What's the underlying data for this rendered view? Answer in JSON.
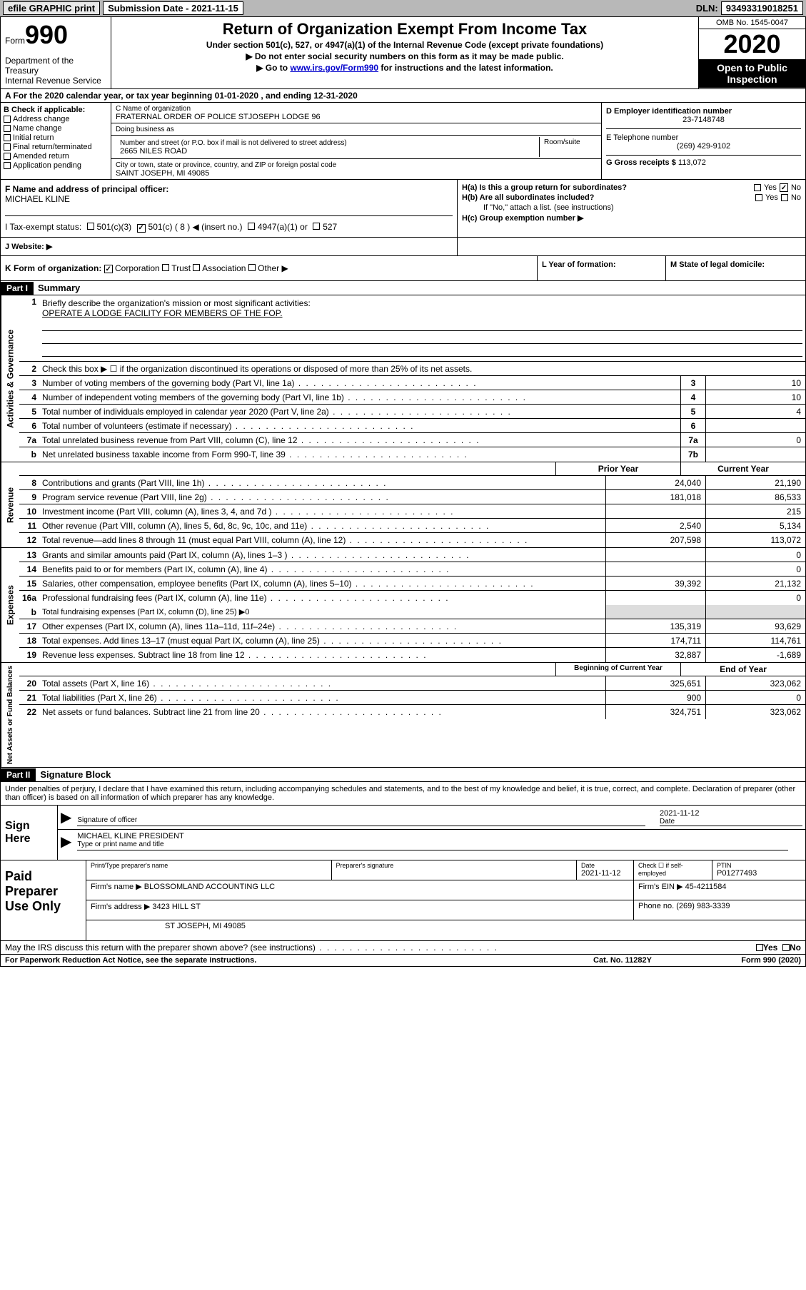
{
  "topbar": {
    "efile": "efile GRAPHIC print",
    "submission_label": "Submission Date - 2021-11-15",
    "dln_label": "DLN:",
    "dln": "93493319018251"
  },
  "header": {
    "form_word": "Form",
    "form_num": "990",
    "dept": "Department of the Treasury\nInternal Revenue Service",
    "title": "Return of Organization Exempt From Income Tax",
    "subtitle": "Under section 501(c), 527, or 4947(a)(1) of the Internal Revenue Code (except private foundations)",
    "instr1": "▶ Do not enter social security numbers on this form as it may be made public.",
    "instr2_pre": "▶ Go to ",
    "instr2_link": "www.irs.gov/Form990",
    "instr2_post": " for instructions and the latest information.",
    "omb": "OMB No. 1545-0047",
    "year": "2020",
    "inspection": "Open to Public Inspection"
  },
  "row_a": "A For the 2020 calendar year, or tax year beginning 01-01-2020    , and ending 12-31-2020",
  "col_b": {
    "header": "B Check if applicable:",
    "items": [
      "Address change",
      "Name change",
      "Initial return",
      "Final return/terminated",
      "Amended return",
      "Application pending"
    ]
  },
  "org": {
    "c_label": "C Name of organization",
    "name": "FRATERNAL ORDER OF POLICE STJOSEPH LODGE 96",
    "dba_label": "Doing business as",
    "addr_label": "Number and street (or P.O. box if mail is not delivered to street address)",
    "room_label": "Room/suite",
    "address": "2665 NILES ROAD",
    "city_label": "City or town, state or province, country, and ZIP or foreign postal code",
    "city": "SAINT JOSEPH, MI  49085"
  },
  "right_col": {
    "d_label": "D Employer identification number",
    "ein": "23-7148748",
    "e_label": "E Telephone number",
    "phone": "(269) 429-9102",
    "g_label": "G Gross receipts $",
    "gross": "113,072"
  },
  "officer": {
    "f_label": "F Name and address of principal officer:",
    "name": "MICHAEL KLINE"
  },
  "h_section": {
    "ha": "H(a)  Is this a group return for subordinates?",
    "hb": "H(b)  Are all subordinates included?",
    "hb_note": "If \"No,\" attach a list. (see instructions)",
    "hc": "H(c)  Group exemption number ▶",
    "yes": "Yes",
    "no": "No"
  },
  "tax_status": {
    "i_label": "I   Tax-exempt status:",
    "opt1": "501(c)(3)",
    "opt2": "501(c) ( 8 ) ◀ (insert no.)",
    "opt3": "4947(a)(1) or",
    "opt4": "527"
  },
  "website": {
    "j_label": "J   Website: ▶"
  },
  "k_row": {
    "k_label": "K Form of organization:",
    "opts": [
      "Corporation",
      "Trust",
      "Association",
      "Other ▶"
    ],
    "l_label": "L Year of formation:",
    "m_label": "M State of legal domicile:"
  },
  "part1": {
    "header": "Part I",
    "title": "Summary"
  },
  "summary": {
    "line1_label": "Briefly describe the organization's mission or most significant activities:",
    "line1_text": "OPERATE A LODGE FACILITY FOR MEMBERS OF THE FOP.",
    "line2": "Check this box ▶ ☐  if the organization discontinued its operations or disposed of more than 25% of its net assets.",
    "line3": "Number of voting members of the governing body (Part VI, line 1a)",
    "line4": "Number of independent voting members of the governing body (Part VI, line 1b)",
    "line5": "Total number of individuals employed in calendar year 2020 (Part V, line 2a)",
    "line6": "Total number of volunteers (estimate if necessary)",
    "line7a": "Total unrelated business revenue from Part VIII, column (C), line 12",
    "line7b": "Net unrelated business taxable income from Form 990-T, line 39",
    "v3": "10",
    "v4": "10",
    "v5": "4",
    "v6": "",
    "v7a": "0",
    "v7b": ""
  },
  "revenue": {
    "prior_head": "Prior Year",
    "current_head": "Current Year",
    "lines": [
      {
        "n": "8",
        "t": "Contributions and grants (Part VIII, line 1h)",
        "p": "24,040",
        "c": "21,190"
      },
      {
        "n": "9",
        "t": "Program service revenue (Part VIII, line 2g)",
        "p": "181,018",
        "c": "86,533"
      },
      {
        "n": "10",
        "t": "Investment income (Part VIII, column (A), lines 3, 4, and 7d )",
        "p": "",
        "c": "215"
      },
      {
        "n": "11",
        "t": "Other revenue (Part VIII, column (A), lines 5, 6d, 8c, 9c, 10c, and 11e)",
        "p": "2,540",
        "c": "5,134"
      },
      {
        "n": "12",
        "t": "Total revenue—add lines 8 through 11 (must equal Part VIII, column (A), line 12)",
        "p": "207,598",
        "c": "113,072"
      }
    ]
  },
  "expenses": {
    "lines": [
      {
        "n": "13",
        "t": "Grants and similar amounts paid (Part IX, column (A), lines 1–3 )",
        "p": "",
        "c": "0"
      },
      {
        "n": "14",
        "t": "Benefits paid to or for members (Part IX, column (A), line 4)",
        "p": "",
        "c": "0"
      },
      {
        "n": "15",
        "t": "Salaries, other compensation, employee benefits (Part IX, column (A), lines 5–10)",
        "p": "39,392",
        "c": "21,132"
      },
      {
        "n": "16a",
        "t": "Professional fundraising fees (Part IX, column (A), line 11e)",
        "p": "",
        "c": "0"
      }
    ],
    "line_b": "Total fundraising expenses (Part IX, column (D), line 25) ▶0",
    "lines2": [
      {
        "n": "17",
        "t": "Other expenses (Part IX, column (A), lines 11a–11d, 11f–24e)",
        "p": "135,319",
        "c": "93,629"
      },
      {
        "n": "18",
        "t": "Total expenses. Add lines 13–17 (must equal Part IX, column (A), line 25)",
        "p": "174,711",
        "c": "114,761"
      },
      {
        "n": "19",
        "t": "Revenue less expenses. Subtract line 18 from line 12",
        "p": "32,887",
        "c": "-1,689"
      }
    ]
  },
  "netassets": {
    "begin_head": "Beginning of Current Year",
    "end_head": "End of Year",
    "lines": [
      {
        "n": "20",
        "t": "Total assets (Part X, line 16)",
        "p": "325,651",
        "c": "323,062"
      },
      {
        "n": "21",
        "t": "Total liabilities (Part X, line 26)",
        "p": "900",
        "c": "0"
      },
      {
        "n": "22",
        "t": "Net assets or fund balances. Subtract line 21 from line 20",
        "p": "324,751",
        "c": "323,062"
      }
    ]
  },
  "part2": {
    "header": "Part II",
    "title": "Signature Block"
  },
  "signature": {
    "declare": "Under penalties of perjury, I declare that I have examined this return, including accompanying schedules and statements, and to the best of my knowledge and belief, it is true, correct, and complete. Declaration of preparer (other than officer) is based on all information of which preparer has any knowledge.",
    "sign_here": "Sign Here",
    "sig_officer_label": "Signature of officer",
    "date_label": "Date",
    "sig_date": "2021-11-12",
    "officer_name": "MICHAEL KLINE  PRESIDENT",
    "type_label": "Type or print name and title"
  },
  "preparer": {
    "label": "Paid Preparer Use Only",
    "print_name_label": "Print/Type preparer's name",
    "prep_sig_label": "Preparer's signature",
    "date_label": "Date",
    "date": "2021-11-12",
    "check_label": "Check ☐ if self-employed",
    "ptin_label": "PTIN",
    "ptin": "P01277493",
    "firm_name_label": "Firm's name     ▶",
    "firm_name": "BLOSSOMLAND ACCOUNTING LLC",
    "firm_ein_label": "Firm's EIN ▶",
    "firm_ein": "45-4211584",
    "firm_addr_label": "Firm's address ▶",
    "firm_addr1": "3423 HILL ST",
    "firm_addr2": "ST JOSEPH, MI  49085",
    "phone_label": "Phone no.",
    "phone": "(269) 983-3339"
  },
  "discuss": "May the IRS discuss this return with the preparer shown above? (see instructions)",
  "footer": {
    "left": "For Paperwork Reduction Act Notice, see the separate instructions.",
    "mid": "Cat. No. 11282Y",
    "right": "Form 990 (2020)"
  },
  "vlabels": {
    "gov": "Activities & Governance",
    "rev": "Revenue",
    "exp": "Expenses",
    "net": "Net Assets or Fund Balances"
  }
}
